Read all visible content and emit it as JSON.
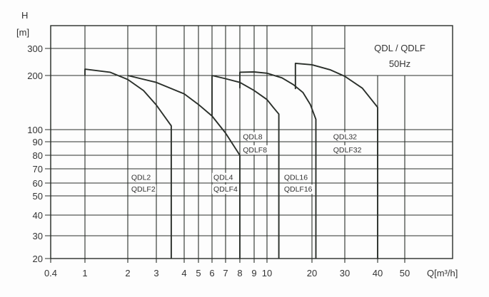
{
  "chart_data": {
    "type": "line",
    "title": "QDL / QDLF",
    "subtitle": "50Hz",
    "xlabel": "Q[m³/h]",
    "ylabel": "H",
    "ylabel_unit": "[m]",
    "x_scale": "log",
    "y_scale": "log",
    "grid": true,
    "legend_placement": "top-right",
    "xlim": [
      0.4,
      70
    ],
    "ylim": [
      20,
      350
    ],
    "x_ticks": [
      0.4,
      1,
      2,
      3,
      4,
      5,
      6,
      7,
      8,
      9,
      10,
      20,
      30,
      40,
      50
    ],
    "x_tick_labels": [
      "0.4",
      "1",
      "2",
      "3",
      "4",
      "5",
      "6",
      "7",
      "8",
      "9",
      "10",
      "20",
      "30",
      "40",
      "50"
    ],
    "y_ticks": [
      20,
      30,
      40,
      50,
      60,
      70,
      80,
      90,
      100,
      200,
      300
    ],
    "y_tick_labels": [
      "20",
      "30",
      "40",
      "50",
      "60",
      "70",
      "80",
      "90",
      "100",
      "200",
      "300"
    ],
    "line_color": "#2a2f2a",
    "series": [
      {
        "name": "QDL2 / QDLF2",
        "points": [
          [
            1,
            200
          ],
          [
            1,
            220
          ],
          [
            1.5,
            210
          ],
          [
            2,
            190
          ],
          [
            2.5,
            165
          ],
          [
            3,
            137
          ],
          [
            3.5,
            105
          ],
          [
            3.5,
            20
          ]
        ]
      },
      {
        "name": "QDL4 / QDLF4",
        "points": [
          [
            2,
            200
          ],
          [
            3,
            183
          ],
          [
            4,
            158
          ],
          [
            5,
            138
          ],
          [
            6,
            119
          ],
          [
            7,
            97
          ],
          [
            8,
            80
          ],
          [
            8,
            20
          ]
        ]
      },
      {
        "name": "QDL8 / QDLF8",
        "points": [
          [
            6,
            119
          ],
          [
            6,
            200
          ],
          [
            7,
            192
          ],
          [
            8,
            183
          ],
          [
            9,
            165
          ],
          [
            10,
            147
          ],
          [
            11,
            133
          ],
          [
            12,
            122
          ],
          [
            12,
            20
          ]
        ]
      },
      {
        "name": "QDL16 / QDLF16",
        "points": [
          [
            8,
            170
          ],
          [
            8,
            210
          ],
          [
            9,
            211
          ],
          [
            10,
            207
          ],
          [
            12.6,
            194
          ],
          [
            15,
            178
          ],
          [
            17.4,
            161
          ],
          [
            19.5,
            138
          ],
          [
            21,
            114
          ],
          [
            21,
            20
          ]
        ]
      },
      {
        "name": "QDL32 / QDLF32",
        "points": [
          [
            15.5,
            168
          ],
          [
            15.5,
            240
          ],
          [
            20,
            235
          ],
          [
            25,
            218
          ],
          [
            30,
            198
          ],
          [
            35,
            170
          ],
          [
            40,
            133
          ],
          [
            40,
            20
          ]
        ]
      }
    ],
    "annotations": [
      {
        "id": "qdl2",
        "text": "QDL2",
        "at": [
          2.1,
          62
        ]
      },
      {
        "id": "qdlf2",
        "text": "QDLF2",
        "at": [
          2.1,
          53
        ]
      },
      {
        "id": "qdl4",
        "text": "QDL4",
        "at": [
          6.1,
          62
        ]
      },
      {
        "id": "qdlf4",
        "text": "QDLF4",
        "at": [
          6.1,
          53
        ]
      },
      {
        "id": "qdl8",
        "text": "QDL8",
        "at": [
          8.2,
          92
        ]
      },
      {
        "id": "qdlf8",
        "text": "QDLF8",
        "at": [
          8.2,
          82
        ]
      },
      {
        "id": "qdl16",
        "text": "QDL16",
        "at": [
          13,
          62
        ]
      },
      {
        "id": "qdlf16",
        "text": "QDLF16",
        "at": [
          13,
          53
        ]
      },
      {
        "id": "qdl32",
        "text": "QDL32",
        "at": [
          26,
          92
        ]
      },
      {
        "id": "qdlf32",
        "text": "QDLF32",
        "at": [
          26,
          82
        ]
      }
    ]
  }
}
